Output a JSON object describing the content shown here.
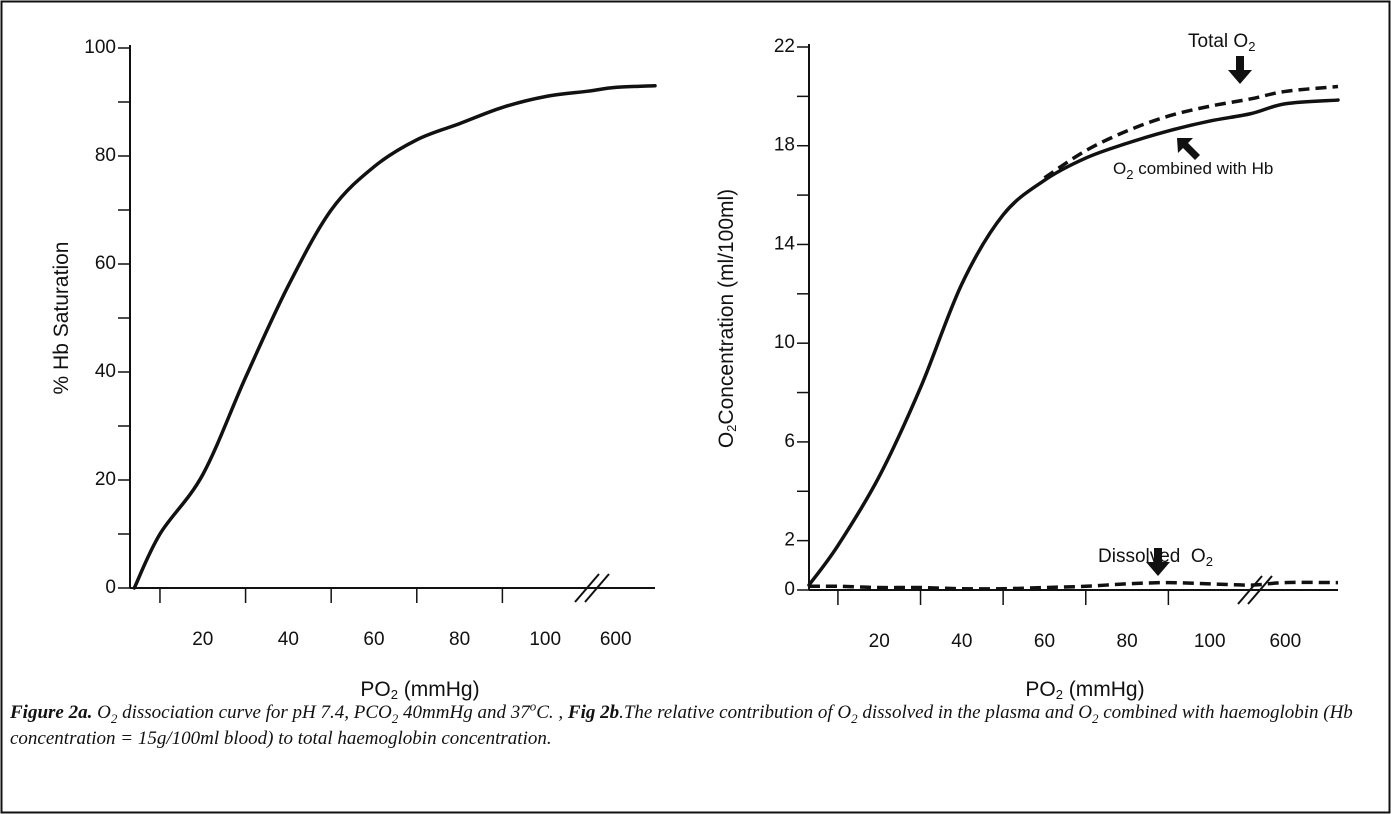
{
  "chart_data": [
    {
      "type": "line",
      "y_label": [
        {
          "text": "% Hb Saturation"
        }
      ],
      "x_label": [
        {
          "text": "PO"
        },
        {
          "text": "2",
          "sub": true
        },
        {
          "text": " (mmHg)"
        }
      ],
      "xlim": [
        3,
        640
      ],
      "xbreak": [
        110,
        580
      ],
      "xticks": [
        20,
        40,
        60,
        80,
        100,
        600
      ],
      "xminorticks": [
        10,
        30,
        50,
        70,
        90
      ],
      "ylim": [
        0,
        100
      ],
      "yticks": [
        0,
        20,
        40,
        60,
        80,
        100
      ],
      "yminorticks": [
        10,
        30,
        50,
        70,
        90
      ],
      "x": [
        4,
        10,
        20,
        30,
        40,
        50,
        60,
        70,
        80,
        90,
        100,
        110,
        600,
        640
      ],
      "series": [
        {
          "color": "#111111",
          "dash": false,
          "values": [
            0,
            10,
            21,
            39,
            56,
            70,
            78,
            83,
            86,
            89,
            91,
            92,
            92.7,
            93
          ]
        }
      ]
    },
    {
      "type": "line",
      "y_label": [
        {
          "text": "O"
        },
        {
          "text": "2",
          "sub": true
        },
        {
          "text": "Concentration (ml/100ml)"
        }
      ],
      "x_label": [
        {
          "text": "PO"
        },
        {
          "text": "2",
          "sub": true
        },
        {
          "text": " (mmHg)"
        }
      ],
      "xlim": [
        3,
        640
      ],
      "xbreak": [
        110,
        580
      ],
      "xticks": [
        20,
        40,
        60,
        80,
        100,
        600
      ],
      "xminorticks": [
        10,
        30,
        50,
        70,
        90
      ],
      "ylim": [
        0,
        22
      ],
      "yticks": [
        0,
        2,
        6,
        10,
        14,
        18,
        22
      ],
      "yminorticks": [
        4,
        8,
        12,
        16,
        20
      ],
      "x": [
        3,
        10,
        20,
        30,
        40,
        50,
        60,
        70,
        80,
        90,
        100,
        110,
        600,
        640
      ],
      "series": [
        {
          "label": [
            {
              "text": "O"
            },
            {
              "text": "2",
              "sub": true
            },
            {
              "text": " combined with Hb"
            }
          ],
          "color": "#111111",
          "dash": false,
          "values": [
            0.2,
            1.8,
            4.6,
            8.2,
            12.4,
            15.2,
            16.6,
            17.5,
            18.1,
            18.6,
            19.0,
            19.3,
            19.7,
            19.85
          ]
        },
        {
          "label": [
            {
              "text": "Total O"
            },
            {
              "text": "2",
              "sub": true
            }
          ],
          "color": "#111111",
          "dash": true,
          "values": [
            null,
            null,
            null,
            null,
            null,
            null,
            16.7,
            17.8,
            18.6,
            19.2,
            19.6,
            19.9,
            20.2,
            20.4
          ]
        },
        {
          "label": [
            {
              "text": "Dissolved  O"
            },
            {
              "text": "2",
              "sub": true
            }
          ],
          "color": "#111111",
          "dash": true,
          "values": [
            0.15,
            0.15,
            0.1,
            0.1,
            0.05,
            0.05,
            0.1,
            0.15,
            0.25,
            0.3,
            0.25,
            0.2,
            0.3,
            0.3
          ]
        }
      ]
    }
  ],
  "caption": [
    {
      "text": "Figure 2a.",
      "bold": true
    },
    {
      "text": " O"
    },
    {
      "text": "2",
      "sub": true
    },
    {
      "text": " dissociation curve for pH 7.4, PCO"
    },
    {
      "text": "2",
      "sub": true
    },
    {
      "text": " 40mmHg and 37"
    },
    {
      "text": "o",
      "sup": true
    },
    {
      "text": "C. , "
    },
    {
      "text": "Fig 2b",
      "bold": true
    },
    {
      "text": ".The relative contribution of O"
    },
    {
      "text": "2",
      "sub": true
    },
    {
      "text": " dissolved in the plasma and O"
    },
    {
      "text": "2",
      "sub": true
    },
    {
      "text": " combined with haemoglobin (Hb concentration = 15g/100ml blood) to total haemoglobin concentration."
    }
  ]
}
